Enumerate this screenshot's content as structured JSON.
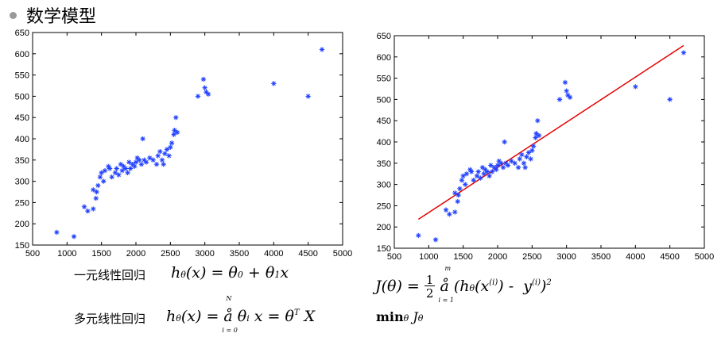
{
  "title": "数学模型",
  "formulas": {
    "simple_label": "一元线性回归",
    "simple_hyp": "hθ(x) = θ0 + θ1x",
    "multi_label": "多元线性回归",
    "multi_hyp": "hθ(x) = å θi x = θT X",
    "cost": "J(θ) = 1/2 å (hθ(x(i)) - y(i))2",
    "objective": "minθ Jθ"
  },
  "chart_data": [
    {
      "type": "scatter",
      "title": "",
      "xlabel": "",
      "ylabel": "",
      "xlim": [
        500,
        5000
      ],
      "ylim": [
        150,
        650
      ],
      "xticks": [
        500,
        1000,
        1500,
        2000,
        2500,
        3000,
        3500,
        4000,
        4500,
        5000
      ],
      "yticks": [
        150,
        200,
        250,
        300,
        350,
        400,
        450,
        500,
        550,
        600,
        650
      ],
      "grid": false,
      "marker": "*",
      "marker_color": "#1f3fff",
      "points": [
        [
          850,
          180
        ],
        [
          1100,
          170
        ],
        [
          1250,
          240
        ],
        [
          1300,
          230
        ],
        [
          1380,
          235
        ],
        [
          1380,
          280
        ],
        [
          1420,
          260
        ],
        [
          1430,
          275
        ],
        [
          1450,
          290
        ],
        [
          1480,
          310
        ],
        [
          1500,
          320
        ],
        [
          1530,
          300
        ],
        [
          1550,
          325
        ],
        [
          1600,
          335
        ],
        [
          1620,
          330
        ],
        [
          1650,
          310
        ],
        [
          1700,
          320
        ],
        [
          1720,
          330
        ],
        [
          1750,
          315
        ],
        [
          1780,
          340
        ],
        [
          1800,
          325
        ],
        [
          1820,
          335
        ],
        [
          1850,
          330
        ],
        [
          1880,
          320
        ],
        [
          1900,
          345
        ],
        [
          1920,
          330
        ],
        [
          1950,
          340
        ],
        [
          1980,
          335
        ],
        [
          2000,
          345
        ],
        [
          2020,
          355
        ],
        [
          2050,
          350
        ],
        [
          2080,
          340
        ],
        [
          2100,
          400
        ],
        [
          2120,
          350
        ],
        [
          2150,
          345
        ],
        [
          2200,
          355
        ],
        [
          2250,
          350
        ],
        [
          2300,
          340
        ],
        [
          2320,
          360
        ],
        [
          2350,
          370
        ],
        [
          2380,
          350
        ],
        [
          2400,
          340
        ],
        [
          2420,
          365
        ],
        [
          2450,
          375
        ],
        [
          2480,
          360
        ],
        [
          2500,
          380
        ],
        [
          2520,
          390
        ],
        [
          2550,
          410
        ],
        [
          2560,
          420
        ],
        [
          2580,
          450
        ],
        [
          2600,
          415
        ],
        [
          2900,
          500
        ],
        [
          2980,
          540
        ],
        [
          3000,
          520
        ],
        [
          3020,
          510
        ],
        [
          3050,
          505
        ],
        [
          4000,
          530
        ],
        [
          4500,
          500
        ],
        [
          4700,
          610
        ]
      ]
    },
    {
      "type": "scatter",
      "title": "",
      "xlabel": "",
      "ylabel": "",
      "xlim": [
        500,
        5000
      ],
      "ylim": [
        150,
        650
      ],
      "xticks": [
        500,
        1000,
        1500,
        2000,
        2500,
        3000,
        3500,
        4000,
        4500,
        5000
      ],
      "yticks": [
        150,
        200,
        250,
        300,
        350,
        400,
        450,
        500,
        550,
        600,
        650
      ],
      "grid": false,
      "marker": "*",
      "marker_color": "#1f3fff",
      "fit_line": {
        "x": [
          850,
          4700
        ],
        "y": [
          218,
          627
        ],
        "color": "#e60000"
      },
      "points": [
        [
          850,
          180
        ],
        [
          1100,
          170
        ],
        [
          1250,
          240
        ],
        [
          1300,
          230
        ],
        [
          1380,
          235
        ],
        [
          1380,
          280
        ],
        [
          1420,
          260
        ],
        [
          1430,
          275
        ],
        [
          1450,
          290
        ],
        [
          1480,
          310
        ],
        [
          1500,
          320
        ],
        [
          1530,
          300
        ],
        [
          1550,
          325
        ],
        [
          1600,
          335
        ],
        [
          1620,
          330
        ],
        [
          1650,
          310
        ],
        [
          1700,
          320
        ],
        [
          1720,
          330
        ],
        [
          1750,
          315
        ],
        [
          1780,
          340
        ],
        [
          1800,
          325
        ],
        [
          1820,
          335
        ],
        [
          1850,
          330
        ],
        [
          1880,
          320
        ],
        [
          1900,
          345
        ],
        [
          1920,
          330
        ],
        [
          1950,
          340
        ],
        [
          1980,
          335
        ],
        [
          2000,
          345
        ],
        [
          2020,
          355
        ],
        [
          2050,
          350
        ],
        [
          2080,
          340
        ],
        [
          2100,
          400
        ],
        [
          2120,
          350
        ],
        [
          2150,
          345
        ],
        [
          2200,
          355
        ],
        [
          2250,
          350
        ],
        [
          2300,
          340
        ],
        [
          2320,
          360
        ],
        [
          2350,
          370
        ],
        [
          2380,
          350
        ],
        [
          2400,
          340
        ],
        [
          2420,
          365
        ],
        [
          2450,
          375
        ],
        [
          2480,
          360
        ],
        [
          2500,
          380
        ],
        [
          2520,
          390
        ],
        [
          2550,
          410
        ],
        [
          2560,
          420
        ],
        [
          2580,
          450
        ],
        [
          2600,
          415
        ],
        [
          2900,
          500
        ],
        [
          2980,
          540
        ],
        [
          3000,
          520
        ],
        [
          3020,
          510
        ],
        [
          3050,
          505
        ],
        [
          4000,
          530
        ],
        [
          4500,
          500
        ],
        [
          4700,
          610
        ]
      ]
    }
  ]
}
